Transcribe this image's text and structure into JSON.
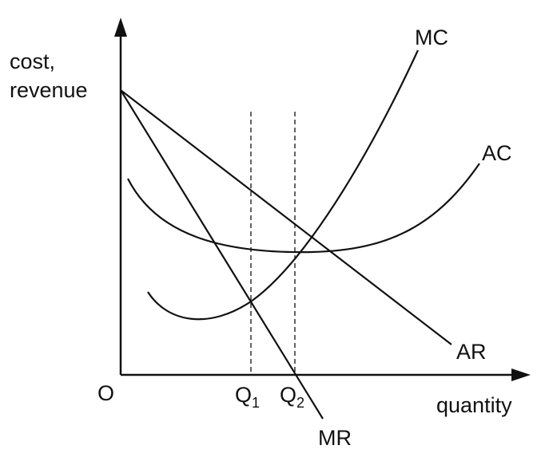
{
  "axes": {
    "y_label_line1": "cost,",
    "y_label_line2": "revenue",
    "x_label": "quantity",
    "origin": "O"
  },
  "curves": {
    "mc": "MC",
    "ac": "AC",
    "ar": "AR",
    "mr": "MR"
  },
  "quantities": {
    "q1_main": "Q",
    "q1_sub": "1",
    "q2_main": "Q",
    "q2_sub": "2"
  }
}
